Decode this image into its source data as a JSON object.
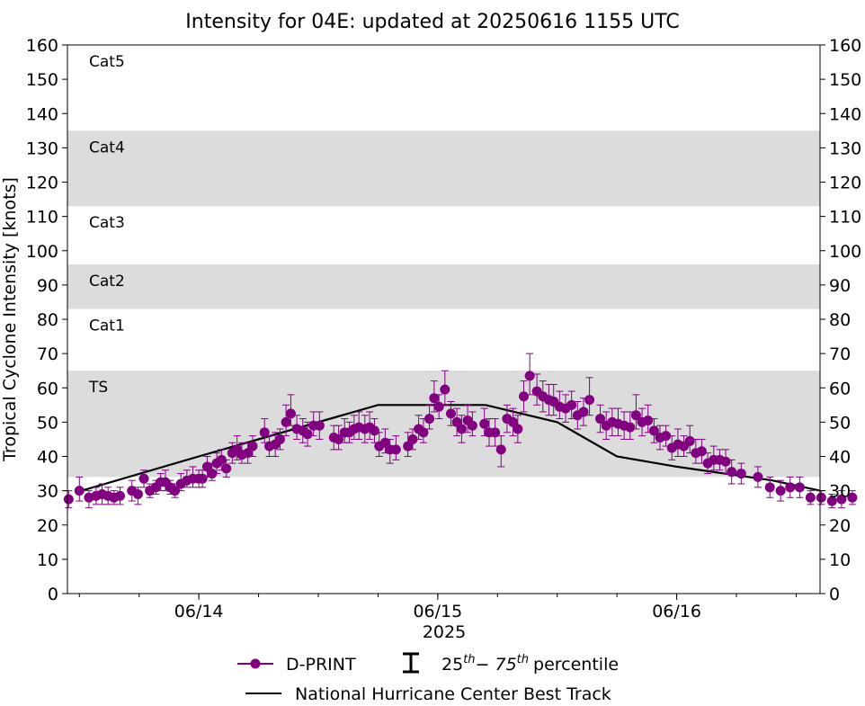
{
  "chart_data": {
    "type": "scatter",
    "title": "Intensity for 04E: updated at 20250616 1155 UTC",
    "xlabel": "2025",
    "ylabel": "Tropical Cyclone Intensity [knots]",
    "ylim": [
      0,
      160
    ],
    "xlim_hours": [
      -11,
      52
    ],
    "yticks": [
      0,
      10,
      20,
      30,
      40,
      50,
      60,
      70,
      80,
      90,
      100,
      110,
      120,
      130,
      140,
      150,
      160
    ],
    "xticks": [
      {
        "label": "06/14",
        "hour": 0
      },
      {
        "label": "06/15",
        "hour": 20
      },
      {
        "label": "06/16",
        "hour": 40
      }
    ],
    "category_bands": [
      {
        "label": "Cat5",
        "from": 137,
        "to": 160,
        "shaded": false
      },
      {
        "label": "Cat4",
        "from": 113,
        "to": 135,
        "shaded": true
      },
      {
        "label": "Cat3",
        "from": 96,
        "to": 113,
        "shaded": false
      },
      {
        "label": "Cat2",
        "from": 83,
        "to": 96,
        "shaded": true
      },
      {
        "label": "Cat1",
        "from": 64,
        "to": 83,
        "shaded": false
      },
      {
        "label": "TS",
        "from": 34,
        "to": 65,
        "shaded": true
      }
    ],
    "grid": false,
    "legend_position": "bottom-center",
    "legend": {
      "dprint": "D-PRINT",
      "percentile_base1": "25",
      "percentile_base2": "− 75",
      "th": "th",
      "percentile_suffix": "percentile",
      "best_track": "National Hurricane Center Best Track"
    },
    "series": [
      {
        "name": "National Hurricane Center Best Track",
        "color": "#000000",
        "points": [
          [
            -9.8,
            30
          ],
          [
            0,
            40
          ],
          [
            15,
            55
          ],
          [
            24,
            55
          ],
          [
            30,
            50
          ],
          [
            35,
            40
          ],
          [
            40,
            37
          ],
          [
            48,
            33
          ],
          [
            52,
            30
          ]
        ]
      },
      {
        "name": "D-PRINT",
        "color": "#800080",
        "points": [
          [
            -10.9,
            27.5,
            25,
            30
          ],
          [
            -10,
            30,
            27,
            34
          ],
          [
            -9.2,
            28,
            25,
            30
          ],
          [
            -8.6,
            28.5,
            26,
            31
          ],
          [
            -8.1,
            29,
            26,
            32
          ],
          [
            -7.6,
            28.5,
            26,
            31
          ],
          [
            -7.1,
            28,
            26,
            30
          ],
          [
            -6.6,
            28.5,
            26,
            31
          ],
          [
            -5.6,
            30,
            27,
            33
          ],
          [
            -5.1,
            29,
            26,
            31
          ],
          [
            -4.6,
            33.5,
            31,
            36
          ],
          [
            -4.1,
            30,
            28,
            32
          ],
          [
            -3.6,
            31,
            29,
            33
          ],
          [
            -3.2,
            32.5,
            30,
            35
          ],
          [
            -2.8,
            32.5,
            30,
            36
          ],
          [
            -2.4,
            31,
            29,
            33
          ],
          [
            -2,
            30,
            28,
            32
          ],
          [
            -1.5,
            32,
            30,
            35
          ],
          [
            -1,
            33,
            31,
            36
          ],
          [
            -0.5,
            33.5,
            31,
            37
          ],
          [
            0,
            33.5,
            31,
            36
          ],
          [
            0.3,
            33.5,
            31,
            36
          ],
          [
            0.7,
            37,
            34,
            40
          ],
          [
            1.1,
            35,
            33,
            38
          ],
          [
            1.5,
            38,
            35,
            41
          ],
          [
            1.9,
            39,
            36,
            42
          ],
          [
            2.3,
            36.5,
            34,
            39
          ],
          [
            2.8,
            41,
            38,
            44
          ],
          [
            3.2,
            42,
            39,
            46
          ],
          [
            3.6,
            40.5,
            38,
            44
          ],
          [
            4.1,
            41,
            38,
            44
          ],
          [
            4.5,
            43,
            40,
            46
          ],
          [
            5.5,
            47,
            44,
            51
          ],
          [
            5.9,
            43,
            40,
            46
          ],
          [
            6.4,
            43.5,
            40,
            47
          ],
          [
            6.8,
            45,
            42,
            48
          ],
          [
            7.3,
            50,
            46,
            55
          ],
          [
            7.7,
            52.5,
            49,
            58
          ],
          [
            8.2,
            48,
            45,
            52
          ],
          [
            8.7,
            47.5,
            44,
            51
          ],
          [
            9.1,
            46.5,
            43,
            50
          ],
          [
            9.6,
            49,
            46,
            53
          ],
          [
            10.1,
            49,
            45,
            53
          ],
          [
            11.3,
            45.5,
            42,
            49
          ],
          [
            11.7,
            45,
            42,
            49
          ],
          [
            12.2,
            47,
            44,
            51
          ],
          [
            12.6,
            47,
            44,
            50
          ],
          [
            13,
            48,
            45,
            52
          ],
          [
            13.4,
            48.5,
            45,
            53
          ],
          [
            13.9,
            48,
            44,
            52
          ],
          [
            14.3,
            48.5,
            45,
            53
          ],
          [
            14.7,
            47.5,
            44,
            51
          ],
          [
            15.1,
            43,
            40,
            47
          ],
          [
            15.6,
            44,
            41,
            48
          ],
          [
            16,
            42,
            38,
            45
          ],
          [
            16.5,
            42,
            39,
            46
          ],
          [
            17.5,
            43,
            40,
            47
          ],
          [
            17.9,
            45,
            42,
            48
          ],
          [
            18.4,
            48,
            45,
            52
          ],
          [
            18.8,
            47,
            44,
            51
          ],
          [
            19.3,
            51,
            48,
            55
          ],
          [
            19.7,
            57,
            53,
            62
          ],
          [
            20.1,
            54.5,
            51,
            58
          ],
          [
            20.6,
            59.5,
            55,
            65
          ],
          [
            21.1,
            52.5,
            49,
            56
          ],
          [
            21.6,
            50,
            46,
            54
          ],
          [
            22,
            48,
            44,
            52
          ],
          [
            22.5,
            50.5,
            47,
            55
          ],
          [
            22.9,
            49,
            46,
            53
          ],
          [
            23.9,
            49.5,
            46,
            54
          ],
          [
            24.3,
            47,
            43,
            51
          ],
          [
            24.8,
            47,
            43,
            51
          ],
          [
            25.3,
            42,
            37,
            46
          ],
          [
            25.8,
            51,
            47,
            55
          ],
          [
            26.3,
            50,
            46,
            54
          ],
          [
            26.7,
            48,
            44,
            52
          ],
          [
            27.2,
            57.5,
            53,
            62
          ],
          [
            27.7,
            63.5,
            58,
            70
          ],
          [
            28.3,
            59,
            55,
            64
          ],
          [
            28.8,
            57.5,
            53,
            62
          ],
          [
            29.3,
            56.5,
            52,
            61
          ],
          [
            29.7,
            56,
            52,
            61
          ],
          [
            30.2,
            54.5,
            51,
            59
          ],
          [
            30.7,
            54,
            50,
            58
          ],
          [
            31.2,
            55,
            51,
            59
          ],
          [
            31.7,
            52,
            48,
            56
          ],
          [
            32.2,
            53,
            49,
            57
          ],
          [
            32.7,
            56.5,
            52,
            63
          ],
          [
            33.6,
            51,
            47,
            55
          ],
          [
            34.1,
            49,
            45,
            53
          ],
          [
            34.6,
            50,
            46,
            54
          ],
          [
            35.1,
            49.5,
            46,
            54
          ],
          [
            35.6,
            49,
            45,
            53
          ],
          [
            36.1,
            48.5,
            45,
            53
          ],
          [
            36.6,
            52,
            48,
            58
          ],
          [
            37.1,
            50,
            46,
            54
          ],
          [
            37.6,
            50.5,
            47,
            55
          ],
          [
            38.1,
            47.5,
            44,
            51
          ],
          [
            38.6,
            45.5,
            42,
            49
          ],
          [
            39.1,
            46,
            43,
            49
          ],
          [
            39.6,
            42.5,
            39,
            46
          ],
          [
            40.1,
            43.5,
            40,
            48
          ],
          [
            40.6,
            43,
            40,
            46
          ],
          [
            41.1,
            44.5,
            41,
            49
          ],
          [
            41.6,
            41,
            38,
            45
          ],
          [
            42.1,
            41.5,
            38,
            45
          ],
          [
            42.6,
            38,
            35,
            41
          ],
          [
            43.1,
            39,
            36,
            43
          ],
          [
            43.6,
            39,
            36,
            42
          ],
          [
            44.1,
            38.5,
            35,
            42
          ],
          [
            44.6,
            35.5,
            32,
            39
          ],
          [
            45.4,
            35,
            32,
            38
          ],
          [
            46.8,
            34,
            31,
            37
          ],
          [
            47.8,
            31,
            28,
            34
          ],
          [
            48.7,
            30,
            27,
            33
          ],
          [
            49.5,
            31,
            28,
            34
          ],
          [
            50.3,
            31,
            28,
            34
          ],
          [
            51.2,
            28,
            26,
            30
          ],
          [
            52.1,
            28,
            26,
            30
          ],
          [
            53,
            27,
            25,
            29
          ],
          [
            53.8,
            27.5,
            25,
            30
          ],
          [
            54.7,
            28,
            26,
            30
          ]
        ]
      }
    ]
  }
}
